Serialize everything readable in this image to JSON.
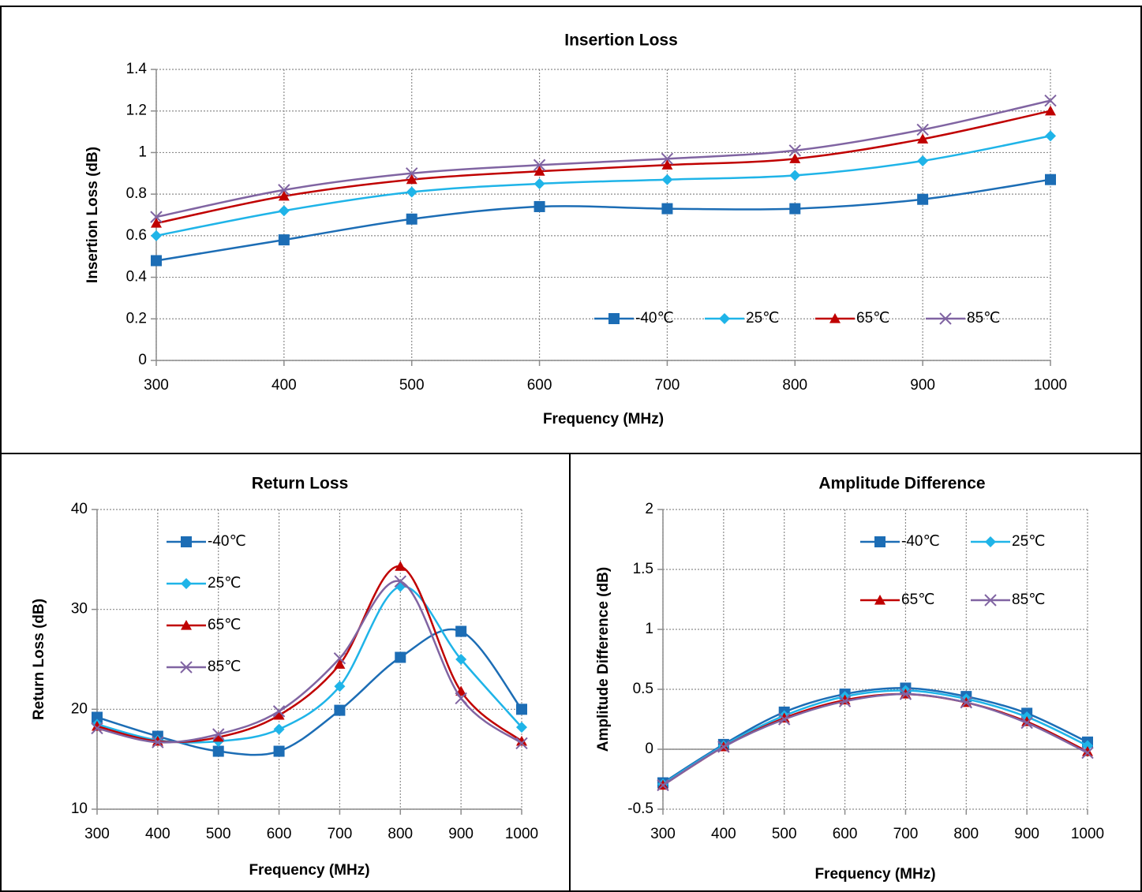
{
  "chart_data": [
    {
      "type": "line",
      "title": "Insertion Loss",
      "x_label": "Frequency (MHz)",
      "y_label": "Insertion Loss (dB)",
      "x": [
        300,
        400,
        500,
        600,
        700,
        800,
        900,
        1000
      ],
      "xlim": [
        300,
        1000
      ],
      "xticks": [
        300,
        400,
        500,
        600,
        700,
        800,
        900,
        1000
      ],
      "ylim": [
        0,
        1.4
      ],
      "yticks": [
        0,
        0.2,
        0.4,
        0.6,
        0.8,
        1,
        1.2,
        1.4
      ],
      "grid": true,
      "smooth": true,
      "legend": "lower right",
      "series": [
        {
          "name": "-40℃",
          "color": "#1c6db5",
          "marker": "square",
          "values": [
            0.48,
            0.58,
            0.68,
            0.74,
            0.73,
            0.73,
            0.775,
            0.87
          ]
        },
        {
          "name": "25℃",
          "color": "#1fb4e8",
          "marker": "diamond",
          "values": [
            0.6,
            0.72,
            0.81,
            0.85,
            0.87,
            0.89,
            0.96,
            1.08
          ]
        },
        {
          "name": "65℃",
          "color": "#c00000",
          "marker": "triangle",
          "values": [
            0.66,
            0.79,
            0.87,
            0.91,
            0.94,
            0.97,
            1.065,
            1.2
          ]
        },
        {
          "name": "85℃",
          "color": "#8064a2",
          "marker": "x",
          "values": [
            0.69,
            0.82,
            0.9,
            0.94,
            0.97,
            1.01,
            1.11,
            1.25
          ]
        }
      ]
    },
    {
      "type": "line",
      "title": "Return Loss",
      "x_label": "Frequency (MHz)",
      "y_label": "Return Loss (dB)",
      "x": [
        300,
        400,
        500,
        600,
        700,
        800,
        900,
        1000
      ],
      "xlim": [
        300,
        1000
      ],
      "xticks": [
        300,
        400,
        500,
        600,
        700,
        800,
        900,
        1000
      ],
      "ylim": [
        10,
        40
      ],
      "yticks": [
        10,
        20,
        30,
        40
      ],
      "grid": true,
      "smooth": true,
      "legend": "upper left",
      "series": [
        {
          "name": "-40℃",
          "color": "#1c6db5",
          "marker": "square",
          "values": [
            19.2,
            17.3,
            15.8,
            15.8,
            19.9,
            25.2,
            27.8,
            20.0
          ]
        },
        {
          "name": "25℃",
          "color": "#1fb4e8",
          "marker": "diamond",
          "values": [
            18.5,
            16.9,
            16.8,
            18.0,
            22.3,
            32.3,
            25.0,
            18.2
          ]
        },
        {
          "name": "65℃",
          "color": "#c00000",
          "marker": "triangle",
          "values": [
            18.3,
            16.8,
            17.2,
            19.4,
            24.5,
            34.3,
            21.8,
            16.8
          ]
        },
        {
          "name": "85℃",
          "color": "#8064a2",
          "marker": "x",
          "values": [
            18.1,
            16.7,
            17.5,
            19.8,
            25.1,
            32.8,
            21.1,
            16.6
          ]
        }
      ]
    },
    {
      "type": "line",
      "title": "Amplitude Difference",
      "x_label": "Frequency (MHz)",
      "y_label": "Amplitude Difference  (dB)",
      "x": [
        300,
        400,
        500,
        600,
        700,
        800,
        900,
        1000
      ],
      "xlim": [
        300,
        1000
      ],
      "xticks": [
        300,
        400,
        500,
        600,
        700,
        800,
        900,
        1000
      ],
      "ylim": [
        -0.5,
        2
      ],
      "yticks": [
        -0.5,
        0,
        0.5,
        1,
        1.5,
        2
      ],
      "grid": true,
      "smooth": true,
      "legend": "upper right",
      "series": [
        {
          "name": "-40℃",
          "color": "#1c6db5",
          "marker": "square",
          "values": [
            -0.28,
            0.04,
            0.31,
            0.46,
            0.51,
            0.44,
            0.3,
            0.06
          ]
        },
        {
          "name": "25℃",
          "color": "#1fb4e8",
          "marker": "diamond",
          "values": [
            -0.29,
            0.03,
            0.28,
            0.44,
            0.49,
            0.42,
            0.27,
            0.03
          ]
        },
        {
          "name": "65℃",
          "color": "#c00000",
          "marker": "triangle",
          "values": [
            -0.3,
            0.02,
            0.26,
            0.41,
            0.46,
            0.39,
            0.23,
            -0.02
          ]
        },
        {
          "name": "85℃",
          "color": "#8064a2",
          "marker": "x",
          "values": [
            -0.3,
            0.02,
            0.25,
            0.4,
            0.46,
            0.39,
            0.22,
            -0.03
          ]
        }
      ]
    }
  ]
}
